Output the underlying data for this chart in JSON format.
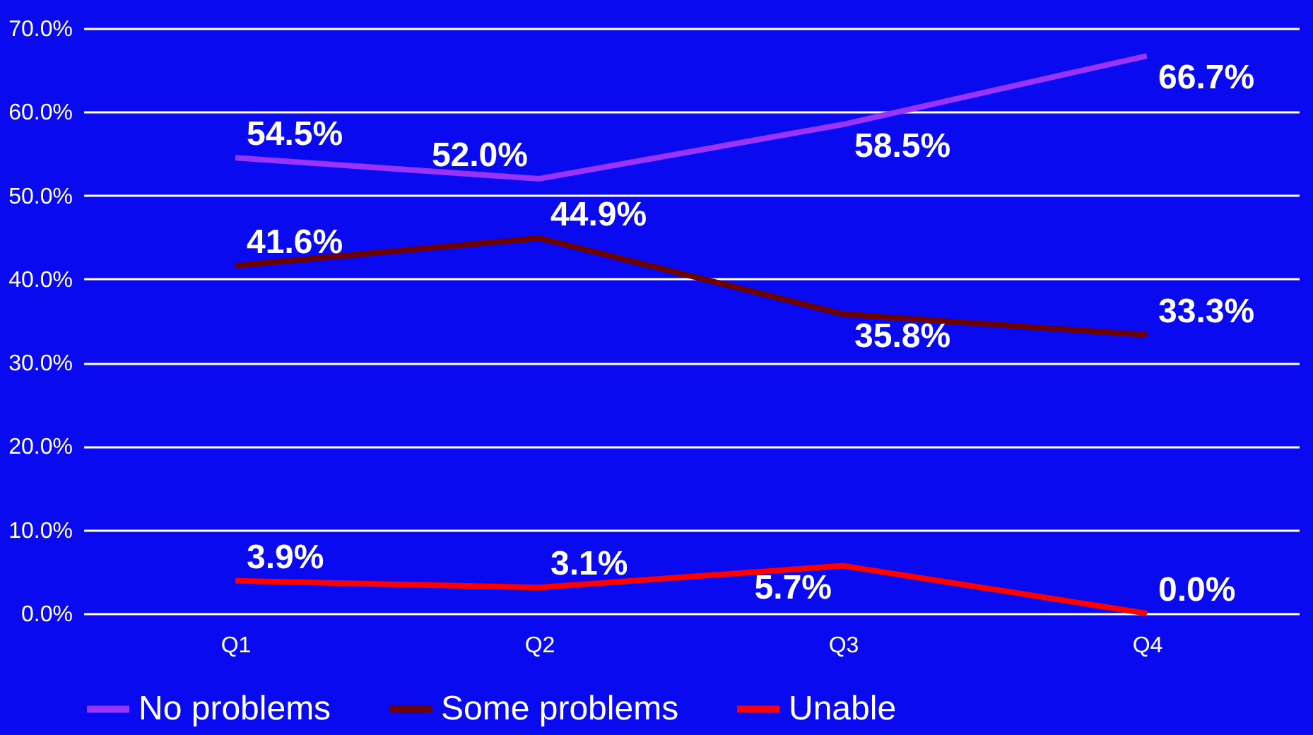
{
  "chart_data": {
    "type": "line",
    "categories": [
      "Q1",
      "Q2",
      "Q3",
      "Q4"
    ],
    "series": [
      {
        "name": "No problems",
        "color": "#9933ff",
        "values": [
          54.5,
          52.0,
          58.5,
          66.7
        ],
        "value_labels": [
          "54.5%",
          "52.0%",
          "58.5%",
          "66.7%"
        ]
      },
      {
        "name": "Some problems",
        "color": "#6b0000",
        "values": [
          41.6,
          44.9,
          35.8,
          33.3
        ],
        "value_labels": [
          "41.6%",
          "44.9%",
          "35.8%",
          "33.3%"
        ]
      },
      {
        "name": "Unable",
        "color": "#ff0000",
        "values": [
          3.9,
          3.1,
          5.7,
          0.0
        ],
        "value_labels": [
          "3.9%",
          "3.1%",
          "5.7%",
          "0.0%"
        ]
      }
    ],
    "ylim": [
      0,
      70
    ],
    "yticks": [
      {
        "value": 0,
        "label": "0.0%"
      },
      {
        "value": 10,
        "label": "10.0%"
      },
      {
        "value": 20,
        "label": "20.0%"
      },
      {
        "value": 30,
        "label": "30.0%"
      },
      {
        "value": 40,
        "label": "40.0%"
      },
      {
        "value": 50,
        "label": "50.0%"
      },
      {
        "value": 60,
        "label": "60.0%"
      },
      {
        "value": 70,
        "label": "70.0%"
      }
    ],
    "grid": "y",
    "legend": "bottom",
    "marker": "none",
    "line_style": "solid"
  }
}
